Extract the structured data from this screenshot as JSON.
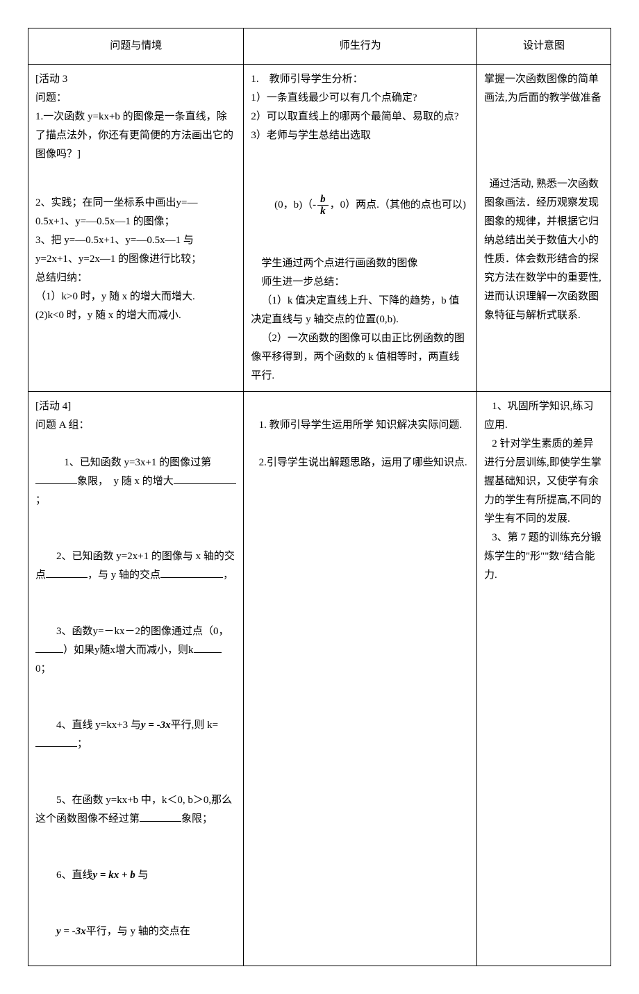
{
  "header": {
    "col1": "问题与情境",
    "col2": "师生行为",
    "col3": "设计意图"
  },
  "row1": {
    "c1_l1": "[活动 3",
    "c1_l2": "问题：",
    "c1_l3": "1.一次函数 y=kx+b 的图像是一条直线，除了描点法外，你还有更简便的方法画出它的图像吗？]",
    "c2_l1": "1.    教师引导学生分析：",
    "c2_l2": "1）一条直线最少可以有几个点确定?",
    "c2_l3": "2）可以取直线上的哪两个最简单、易取的点?",
    "c2_l4": "3）老师与学生总结出选取",
    "c3": "掌握一次函数图像的简单画法,为后面的教学做准备"
  },
  "row2": {
    "c1_l1": "2、实践；在同一坐标系中画出y=—0.5x+1、y=—0.5x—1 的图像；",
    "c1_l2": "3、把 y=—0.5x+1、y=—0.5x—1 与 y=2x+1、y=2x—1 的图像进行比较；",
    "c1_l3": "总结归纳：",
    "c1_l4": "（1）k>0 时，y 随 x 的增大而增大.",
    "c1_l5": "(2)k<0 时，y 随 x 的增大而减小.",
    "c2_pre": " (0，b)（-",
    "c2_post": "，0）两点.（其他的点也可以)",
    "c2_l2": "    学生通过两个点进行画函数的图像",
    "c2_l3": "    师生进一步总结：",
    "c2_l4": "    （1）k 值决定直线上升、下降的趋势，b 值决定直线与 y 轴交点的位置(0,b).",
    "c2_l5": "    （2）一次函数的图像可以由正比例函数的图像平移得到，两个函数的 k 值相等时，两直线平行.",
    "c3": "  通过活动, 熟悉一次函数图象画法．经历观察发现图象的规律，并根据它归纳总结出关于数值大小的性质．体会数形结合的探究方法在数学中的重要性,进而认识理解一次函数图象特征与解析式联系."
  },
  "row3": {
    "c1_l1": "[活动 4]",
    "c1_l2": "问题 A 组：",
    "c1_q1a": "   1、已知函数 y=3x+1 的图像过第",
    "c1_q1b": "象限，  y 随 x 的增大",
    "c1_q1c": "；",
    "c1_q2a": "2、已知函数 y=2x+1 的图像与 x 轴的交点",
    "c1_q2b": "，与 y 轴的交点",
    "c1_q2c": "，",
    "c1_q3a": "3、函数y=－kx－2的图像通过点（0，",
    "c1_q3b": "）如果y随x增大而减小，则k",
    "c1_q3c": "0；",
    "c1_q4a": "4、直线 y=kx+3 与",
    "c1_q4eq": "y = -3x",
    "c1_q4b": "平行,则 k=",
    "c1_q4c": "；",
    "c1_q5a": "5、在函数 y=kx+b 中，k＜0, b＞0,那么这个函数图像不经过第",
    "c1_q5b": "象限；",
    "c1_q6a": "6、直线",
    "c1_q6eq": "y = kx + b",
    "c1_q6b": " 与",
    "c1_q7eq": "y = -3x",
    "c1_q7a": "平行，与 y 轴的交点在",
    "c2_l1": "   1. 教师引导学生运用所学 知识解决实际问题.",
    "c2_l2": "   2.引导学生说出解题思路，运用了哪些知识点.",
    "c3": "   1、巩固所学知识,练习应用.\n   2 针对学生素质的差异进行分层训练,即使学生掌握基础知识，又使学有余力的学生有所提高,不同的学生有不同的发展.\n   3、第 7 题的训练充分锻炼学生的\"形\"\"数\"结合能力."
  },
  "style": {
    "background": "#ffffff",
    "border_color": "#000000",
    "font_size": 15
  }
}
